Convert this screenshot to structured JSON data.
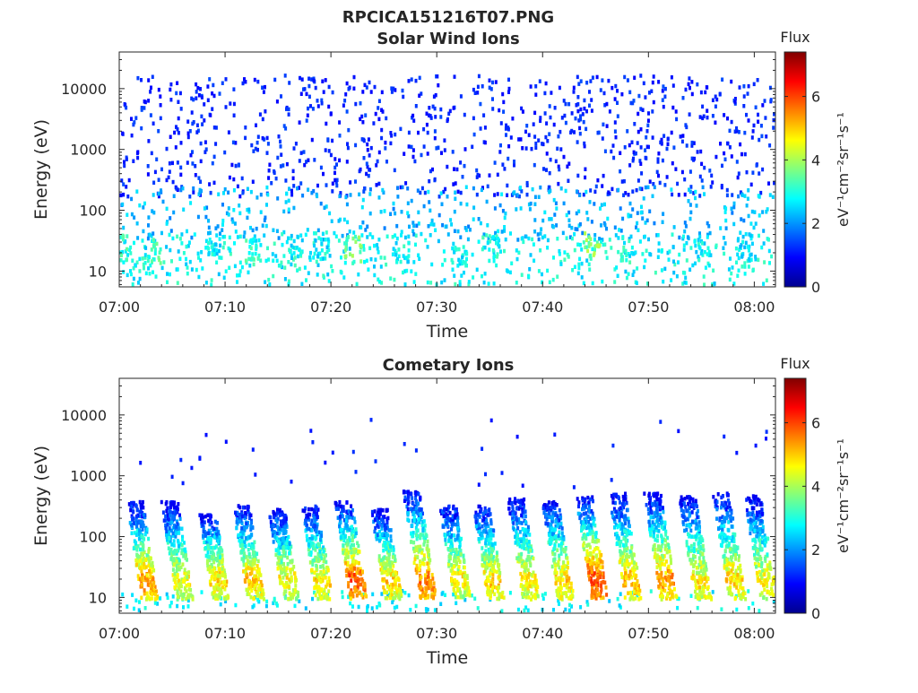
{
  "figure": {
    "title": "RPCICA151216T07.PNG"
  },
  "colorbar": {
    "label": "Flux",
    "unit": "eV⁻¹cm⁻²sr⁻¹s⁻¹",
    "range": [
      0,
      7.4
    ],
    "ticks": [
      "0",
      "2",
      "4",
      "6"
    ],
    "tick_values": [
      0,
      2,
      4,
      6
    ]
  },
  "chart_data": [
    {
      "type": "heatmap",
      "title": "Solar Wind Ions",
      "xlabel": "Time",
      "ylabel": "Energy (eV)",
      "xlim_minutes": [
        0,
        62
      ],
      "ylim": [
        5.5,
        40000
      ],
      "y_scale": "log",
      "x_ticks": [
        "07:00",
        "07:10",
        "07:20",
        "07:30",
        "07:40",
        "07:50",
        "08:00"
      ],
      "x_tick_minutes": [
        0,
        10,
        20,
        30,
        40,
        50,
        60
      ],
      "y_ticks": [
        "10",
        "100",
        "1000",
        "10000"
      ],
      "y_tick_values": [
        10,
        100,
        1000,
        10000
      ],
      "colormap": "jet",
      "description": "Sparse scattered counts: blue (flux ~1) above 200 eV, cyan/green (flux 2–4) below 100 eV, periodic green bursts near 20–30 eV",
      "bursts": [
        {
          "time_minutes": 0.5,
          "energy_eV": 25,
          "flux": 3.5
        },
        {
          "time_minutes": 3.0,
          "energy_eV": 22,
          "flux": 3.8
        },
        {
          "time_minutes": 9.0,
          "energy_eV": 28,
          "flux": 3.2
        },
        {
          "time_minutes": 12.5,
          "energy_eV": 22,
          "flux": 3.6
        },
        {
          "time_minutes": 16.5,
          "energy_eV": 25,
          "flux": 3.3
        },
        {
          "time_minutes": 19.0,
          "energy_eV": 28,
          "flux": 3.2
        },
        {
          "time_minutes": 22.0,
          "energy_eV": 25,
          "flux": 4.0
        },
        {
          "time_minutes": 26.5,
          "energy_eV": 25,
          "flux": 3.3
        },
        {
          "time_minutes": 32.0,
          "energy_eV": 22,
          "flux": 3.2
        },
        {
          "time_minutes": 35.0,
          "energy_eV": 25,
          "flux": 3.4
        },
        {
          "time_minutes": 44.5,
          "energy_eV": 28,
          "flux": 4.2
        },
        {
          "time_minutes": 48.0,
          "energy_eV": 25,
          "flux": 3.4
        },
        {
          "time_minutes": 55.0,
          "energy_eV": 22,
          "flux": 3.3
        },
        {
          "time_minutes": 59.0,
          "energy_eV": 25,
          "flux": 3.1
        }
      ]
    },
    {
      "type": "heatmap",
      "title": "Cometary Ions",
      "xlabel": "Time",
      "ylabel": "Energy (eV)",
      "xlim_minutes": [
        0,
        62
      ],
      "ylim": [
        5.5,
        40000
      ],
      "y_scale": "log",
      "x_ticks": [
        "07:00",
        "07:10",
        "07:20",
        "07:30",
        "07:40",
        "07:50",
        "08:00"
      ],
      "x_tick_minutes": [
        0,
        10,
        20,
        30,
        40,
        50,
        60
      ],
      "y_ticks": [
        "10",
        "100",
        "1000",
        "10000"
      ],
      "y_tick_values": [
        10,
        100,
        1000,
        10000
      ],
      "colormap": "jet",
      "description": "Periodic energy-dispersed bursts roughly every 3 minutes, peaking in flux (orange/red ~6) at 15–30 eV and extending to ~400 eV in blue",
      "bursts": [
        {
          "time_minutes": 2.5,
          "peak_energy_eV": 20,
          "max_energy_eV": 400,
          "peak_flux": 6.0
        },
        {
          "time_minutes": 5.8,
          "peak_energy_eV": 20,
          "max_energy_eV": 400,
          "peak_flux": 5.2
        },
        {
          "time_minutes": 9.2,
          "peak_energy_eV": 22,
          "max_energy_eV": 250,
          "peak_flux": 5.5
        },
        {
          "time_minutes": 12.5,
          "peak_energy_eV": 22,
          "max_energy_eV": 350,
          "peak_flux": 5.6
        },
        {
          "time_minutes": 15.8,
          "peak_energy_eV": 22,
          "max_energy_eV": 300,
          "peak_flux": 5.2
        },
        {
          "time_minutes": 19.0,
          "peak_energy_eV": 20,
          "max_energy_eV": 350,
          "peak_flux": 5.4
        },
        {
          "time_minutes": 22.2,
          "peak_energy_eV": 22,
          "max_energy_eV": 400,
          "peak_flux": 6.5
        },
        {
          "time_minutes": 25.5,
          "peak_energy_eV": 22,
          "max_energy_eV": 300,
          "peak_flux": 5.6
        },
        {
          "time_minutes": 28.8,
          "peak_energy_eV": 20,
          "max_energy_eV": 600,
          "peak_flux": 6.2
        },
        {
          "time_minutes": 32.0,
          "peak_energy_eV": 22,
          "max_energy_eV": 350,
          "peak_flux": 5.3
        },
        {
          "time_minutes": 35.2,
          "peak_energy_eV": 20,
          "max_energy_eV": 350,
          "peak_flux": 5.5
        },
        {
          "time_minutes": 38.5,
          "peak_energy_eV": 22,
          "max_energy_eV": 450,
          "peak_flux": 5.4
        },
        {
          "time_minutes": 41.8,
          "peak_energy_eV": 20,
          "max_energy_eV": 400,
          "peak_flux": 5.6
        },
        {
          "time_minutes": 45.0,
          "peak_energy_eV": 22,
          "max_energy_eV": 500,
          "peak_flux": 6.6
        },
        {
          "time_minutes": 48.2,
          "peak_energy_eV": 20,
          "max_energy_eV": 550,
          "peak_flux": 5.8
        },
        {
          "time_minutes": 51.5,
          "peak_energy_eV": 22,
          "max_energy_eV": 550,
          "peak_flux": 6.0
        },
        {
          "time_minutes": 54.8,
          "peak_energy_eV": 20,
          "max_energy_eV": 500,
          "peak_flux": 5.4
        },
        {
          "time_minutes": 58.0,
          "peak_energy_eV": 22,
          "max_energy_eV": 550,
          "peak_flux": 5.5
        },
        {
          "time_minutes": 61.0,
          "peak_energy_eV": 20,
          "max_energy_eV": 500,
          "peak_flux": 5.3
        }
      ]
    }
  ]
}
